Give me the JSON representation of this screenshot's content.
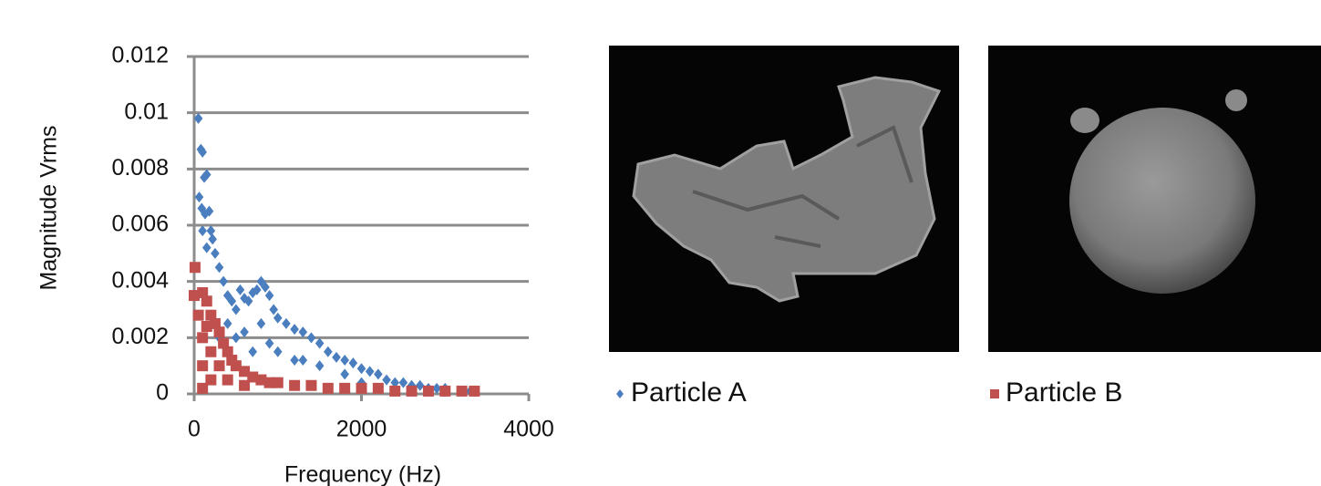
{
  "chart_data": {
    "type": "scatter",
    "xlabel": "Frequency (Hz)",
    "ylabel": "Magnitude Vrms",
    "xlim": [
      0,
      4000
    ],
    "xticks": [
      0,
      2000,
      4000
    ],
    "ylim": [
      0,
      0.012
    ],
    "yticks": [
      0,
      0.002,
      0.004,
      0.006,
      0.008,
      0.01,
      0.012
    ],
    "grid": true,
    "series": [
      {
        "name": "Particle A",
        "color": "#4a7ebf",
        "marker": "diamond",
        "x": [
          50,
          80,
          100,
          120,
          150,
          60,
          90,
          130,
          180,
          200,
          220,
          250,
          100,
          150,
          300,
          350,
          400,
          450,
          500,
          550,
          600,
          650,
          700,
          750,
          800,
          850,
          900,
          950,
          1000,
          1100,
          1200,
          1300,
          1400,
          1500,
          1600,
          1700,
          1800,
          1900,
          2000,
          2100,
          2200,
          2300,
          2400,
          2500,
          2600,
          2700,
          2800,
          2900,
          3000,
          3200,
          3300,
          3350,
          300,
          500,
          700,
          800,
          1000,
          1200,
          1500,
          1800,
          400,
          600,
          900,
          1300,
          2000,
          2400
        ],
        "values": [
          0.0098,
          0.0087,
          0.0086,
          0.0077,
          0.0078,
          0.007,
          0.0066,
          0.0064,
          0.0065,
          0.0058,
          0.0055,
          0.005,
          0.0058,
          0.0052,
          0.0045,
          0.004,
          0.0035,
          0.0033,
          0.003,
          0.0037,
          0.0034,
          0.0033,
          0.0036,
          0.0037,
          0.004,
          0.0038,
          0.0035,
          0.003,
          0.0027,
          0.0025,
          0.0023,
          0.0022,
          0.002,
          0.0018,
          0.0015,
          0.0013,
          0.0012,
          0.0011,
          0.0009,
          0.0008,
          0.0007,
          0.0005,
          0.0004,
          0.0004,
          0.0003,
          0.0003,
          0.0002,
          0.0002,
          0.0002,
          0.0001,
          0.0001,
          0.0001,
          0.002,
          0.002,
          0.0015,
          0.0025,
          0.0015,
          0.0012,
          0.001,
          0.0007,
          0.0025,
          0.0022,
          0.0018,
          0.0012,
          0.0004,
          0.0002
        ]
      },
      {
        "name": "Particle B",
        "color": "#c0504d",
        "marker": "square",
        "x": [
          10,
          0,
          100,
          150,
          200,
          250,
          300,
          350,
          400,
          450,
          500,
          600,
          700,
          800,
          900,
          1000,
          1200,
          1400,
          1600,
          1800,
          2000,
          2200,
          2400,
          2600,
          2800,
          3000,
          3200,
          3350,
          100,
          200,
          100,
          300,
          200,
          400,
          600,
          100,
          50,
          150
        ],
        "values": [
          0.0045,
          0.0035,
          0.0036,
          0.0033,
          0.0028,
          0.0025,
          0.0022,
          0.0018,
          0.0015,
          0.0012,
          0.001,
          0.0008,
          0.0006,
          0.0005,
          0.0004,
          0.0004,
          0.0003,
          0.0003,
          0.0002,
          0.0002,
          0.0002,
          0.0002,
          0.0001,
          0.0001,
          0.0001,
          0.0001,
          0.0001,
          0.0001,
          0.002,
          0.0015,
          0.001,
          0.001,
          0.0005,
          0.0005,
          0.0003,
          0.0002,
          0.0028,
          0.0024
        ]
      }
    ]
  }
}
